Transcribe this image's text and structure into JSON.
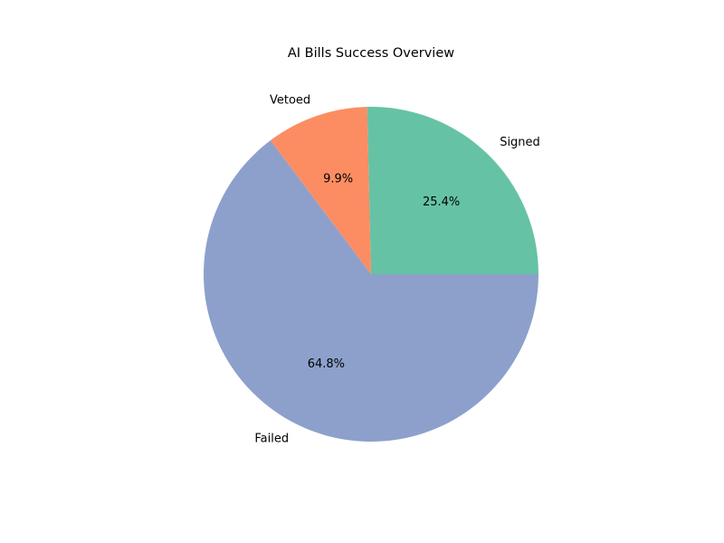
{
  "chart_data": {
    "type": "pie",
    "title": "AI Bills Success Overview",
    "categories": [
      "Signed",
      "Vetoed",
      "Failed"
    ],
    "values": [
      25.4,
      9.9,
      64.8
    ],
    "value_labels": [
      "25.4%",
      "9.9%",
      "64.8%"
    ],
    "colors": [
      "#66c2a5",
      "#fc8d62",
      "#8da0cb"
    ],
    "start_angle_deg": 0,
    "direction": "counterclockwise"
  }
}
